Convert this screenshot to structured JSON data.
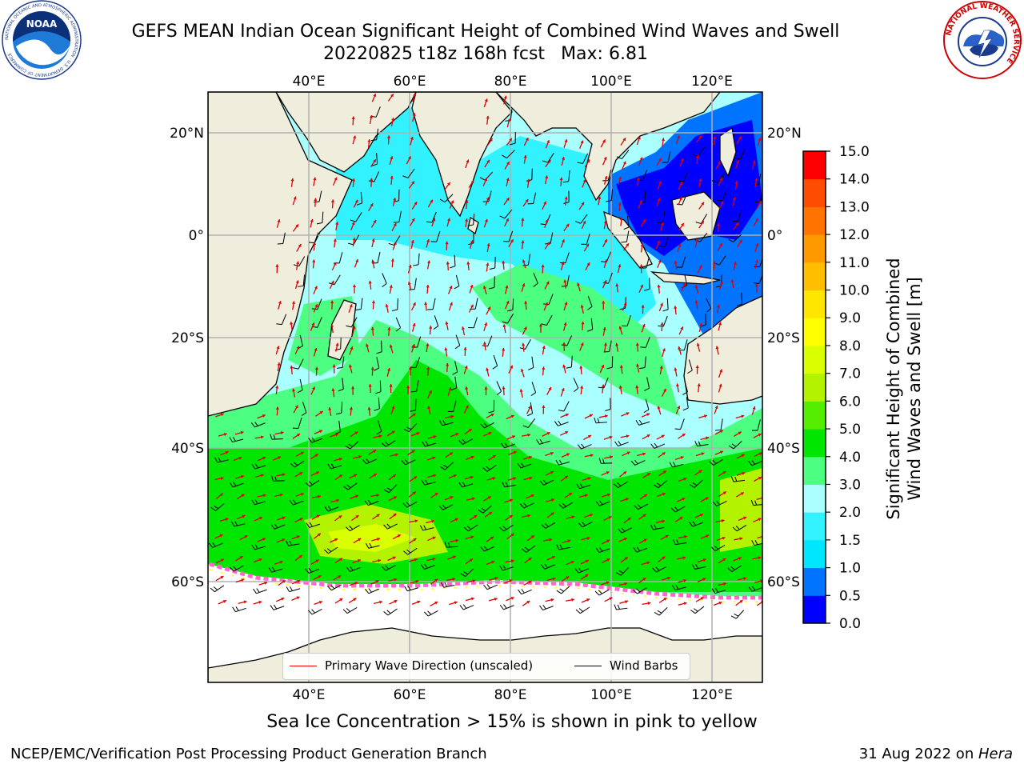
{
  "title": {
    "line1": "GEFS MEAN Indian Ocean Significant Height of Combined Wind Waves and Swell",
    "run": "20220825 t18z 168h fcst",
    "max_label": "Max: 6.81"
  },
  "map": {
    "lon_ticks": [
      "40°E",
      "60°E",
      "80°E",
      "100°E",
      "120°E"
    ],
    "lat_ticks": [
      "20°N",
      "0°",
      "20°S",
      "40°S",
      "60°S"
    ],
    "lon_values": [
      40,
      60,
      80,
      100,
      120
    ],
    "lat_values": [
      20,
      0,
      -20,
      -40,
      -60
    ],
    "extent": {
      "lon_min": 20,
      "lon_max": 130,
      "lat_min": -70,
      "lat_max": 28
    },
    "land_color": "#efeddc",
    "ice_note_colors": [
      "#ff66cc",
      "#ffff33"
    ]
  },
  "legend": {
    "wave_direction": "Primary Wave Direction (unscaled)",
    "wind_barbs": "Wind Barbs",
    "wave_color": "#ff0000",
    "barb_color": "#000000"
  },
  "colorbar": {
    "label_line1": "Significant Height of Combined",
    "label_line2": "Wind Waves and Swell [m]",
    "ticks": [
      "0.0",
      "0.5",
      "1.0",
      "1.5",
      "2.0",
      "3.0",
      "4.0",
      "5.0",
      "6.0",
      "7.0",
      "8.0",
      "9.0",
      "10.0",
      "11.0",
      "12.0",
      "13.0",
      "14.0",
      "15.0"
    ],
    "colors": [
      "#0000ff",
      "#0073ff",
      "#00e6ff",
      "#33f2ff",
      "#aaffff",
      "#4dff80",
      "#00e600",
      "#55ee00",
      "#b3f200",
      "#d9ff00",
      "#ffff00",
      "#ffe600",
      "#ffbf00",
      "#ff9900",
      "#ff7300",
      "#ff4d00",
      "#ff0000"
    ]
  },
  "subcaption": "Sea Ice Concentration > 15% is shown in pink to yellow",
  "footer": {
    "left": "NCEP/EMC/Verification Post Processing Product Generation Branch",
    "date": "31 Aug 2022 on ",
    "machine": "Hera"
  },
  "logos": {
    "noaa_text": "NOAA",
    "noaa_ring": "NATIONAL OCEANIC AND ATMOSPHERIC ADMINISTRATION · U.S. DEPARTMENT OF COMMERCE",
    "nws_ring": "NATIONAL WEATHER SERVICE"
  }
}
